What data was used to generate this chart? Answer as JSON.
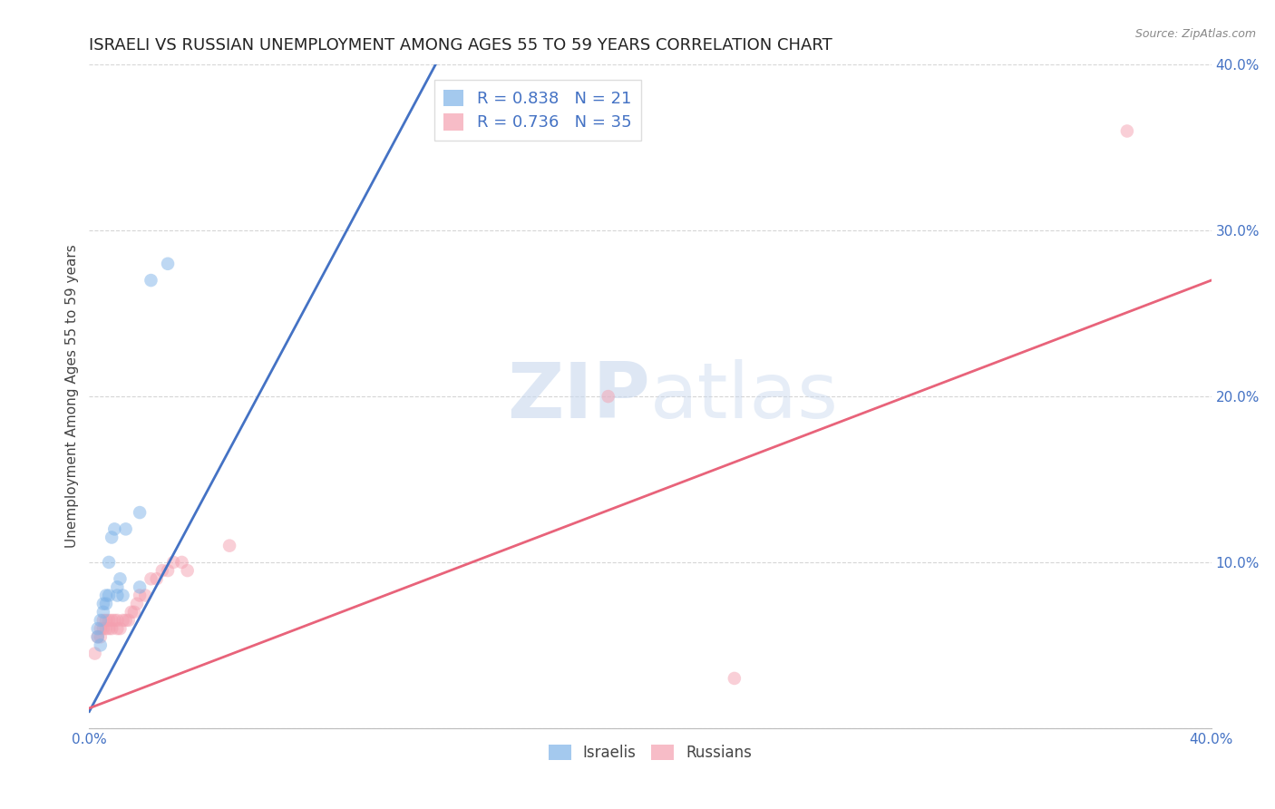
{
  "title": "ISRAELI VS RUSSIAN UNEMPLOYMENT AMONG AGES 55 TO 59 YEARS CORRELATION CHART",
  "source": "Source: ZipAtlas.com",
  "ylabel": "Unemployment Among Ages 55 to 59 years",
  "xlim": [
    0.0,
    0.4
  ],
  "ylim": [
    0.0,
    0.4
  ],
  "background_color": "#ffffff",
  "israelis_color": "#7EB3E8",
  "russians_color": "#F4A0B0",
  "israeli_line_color": "#4472C4",
  "russian_line_color": "#E8637A",
  "R_israeli": 0.838,
  "N_israeli": 21,
  "R_russian": 0.736,
  "N_russian": 35,
  "israelis_x": [
    0.003,
    0.003,
    0.004,
    0.004,
    0.005,
    0.005,
    0.006,
    0.006,
    0.007,
    0.007,
    0.008,
    0.009,
    0.01,
    0.01,
    0.011,
    0.012,
    0.013,
    0.018,
    0.018,
    0.022,
    0.028
  ],
  "israelis_y": [
    0.055,
    0.06,
    0.05,
    0.065,
    0.07,
    0.075,
    0.075,
    0.08,
    0.08,
    0.1,
    0.115,
    0.12,
    0.08,
    0.085,
    0.09,
    0.08,
    0.12,
    0.13,
    0.085,
    0.27,
    0.28
  ],
  "russians_x": [
    0.002,
    0.003,
    0.004,
    0.004,
    0.005,
    0.005,
    0.006,
    0.006,
    0.007,
    0.007,
    0.008,
    0.008,
    0.009,
    0.01,
    0.01,
    0.011,
    0.012,
    0.013,
    0.014,
    0.015,
    0.016,
    0.017,
    0.018,
    0.02,
    0.022,
    0.024,
    0.026,
    0.028,
    0.03,
    0.033,
    0.035,
    0.05,
    0.185,
    0.23,
    0.37
  ],
  "russians_y": [
    0.045,
    0.055,
    0.055,
    0.06,
    0.06,
    0.065,
    0.06,
    0.065,
    0.06,
    0.065,
    0.06,
    0.065,
    0.065,
    0.06,
    0.065,
    0.06,
    0.065,
    0.065,
    0.065,
    0.07,
    0.07,
    0.075,
    0.08,
    0.08,
    0.09,
    0.09,
    0.095,
    0.095,
    0.1,
    0.1,
    0.095,
    0.11,
    0.2,
    0.03,
    0.36
  ],
  "israeli_trend_x": [
    0.0,
    0.125
  ],
  "israeli_trend_y": [
    0.01,
    0.405
  ],
  "russian_trend_x": [
    0.0,
    0.4
  ],
  "russian_trend_y": [
    0.012,
    0.27
  ],
  "title_fontsize": 13,
  "label_fontsize": 11,
  "tick_fontsize": 11,
  "marker_size": 110,
  "marker_alpha": 0.5,
  "grid_color": "#cccccc",
  "grid_alpha": 0.8
}
